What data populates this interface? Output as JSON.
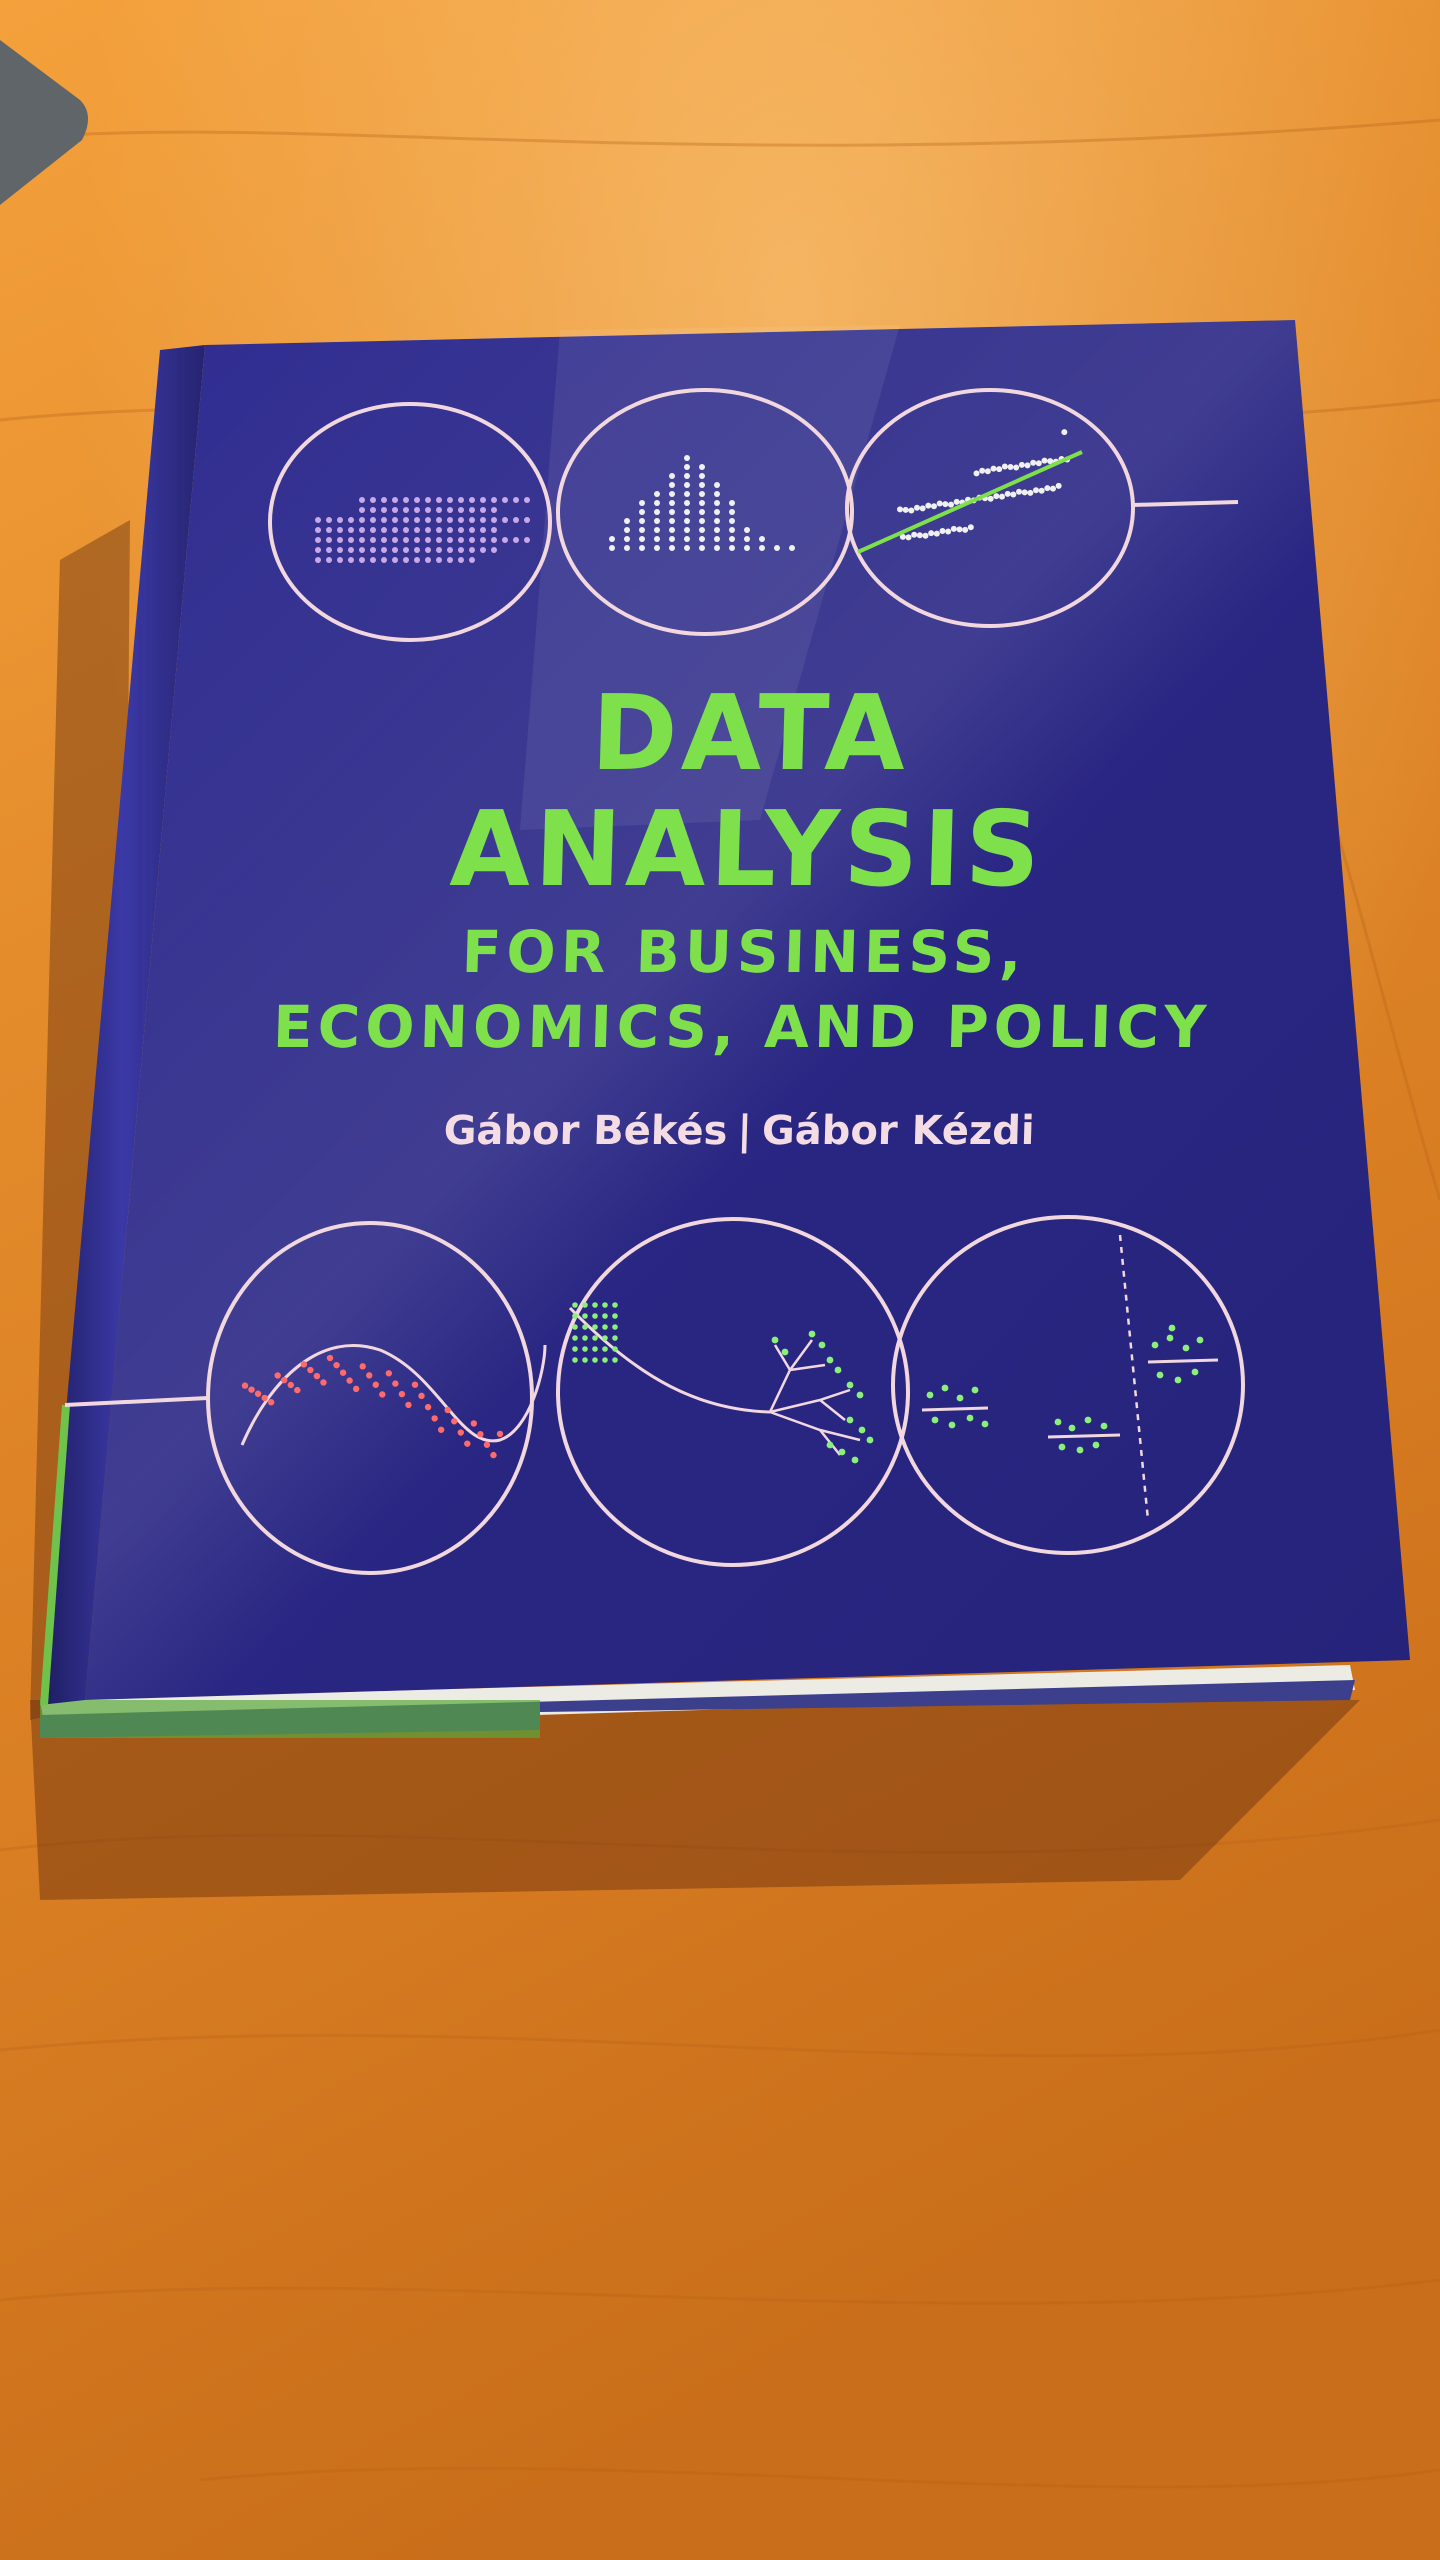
{
  "book": {
    "title_line1": "DATA",
    "title_line2": "ANALYSIS",
    "subtitle_line1": "FOR BUSINESS,",
    "subtitle_line2": "ECONOMICS, AND POLICY",
    "author1": "Gábor Békés",
    "author_separator": "|",
    "author2": "Gábor Kézdi"
  },
  "colors": {
    "table_wood": "#d9852a",
    "cover_navy": "#2c2a8a",
    "title_green": "#7ee04a",
    "author_pink": "#f3dce3",
    "circle_outline": "#f2d8de",
    "dot_red": "#ff6a6a",
    "dot_green": "#8af07a"
  },
  "icons": [
    "heatmap-dots-icon",
    "histogram-dots-icon",
    "scatter-fit-icon",
    "curve-fit-icon",
    "regression-tree-icon",
    "discontinuity-icon"
  ]
}
